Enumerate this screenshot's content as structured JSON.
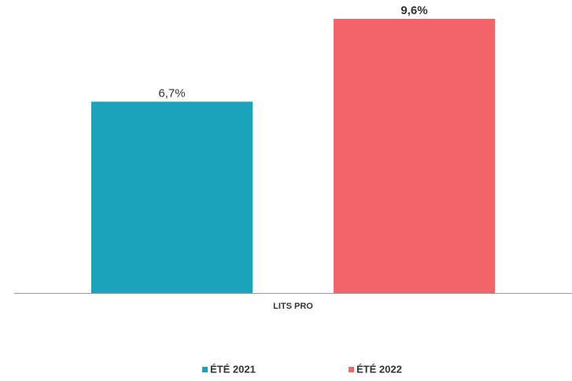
{
  "chart_data": {
    "type": "bar",
    "categories": [
      "LITS PRO"
    ],
    "series": [
      {
        "name": "ÉTÉ 2021",
        "color": "#1aa3bb",
        "values": [
          6.7
        ],
        "value_labels": [
          "6,7%"
        ]
      },
      {
        "name": "ÉTÉ 2022",
        "color": "#f2636a",
        "values": [
          9.6
        ],
        "value_labels": [
          "9,6%"
        ]
      }
    ]
  }
}
